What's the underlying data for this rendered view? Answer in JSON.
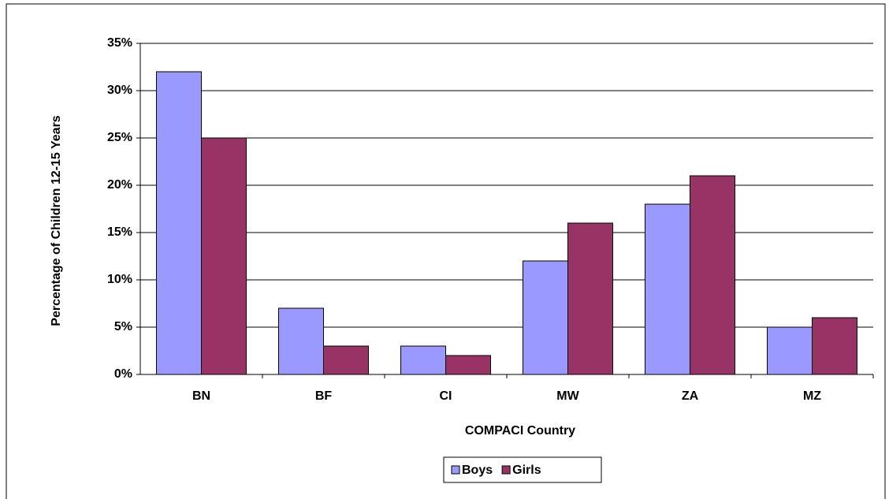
{
  "chart_data": {
    "type": "bar",
    "y_label": "Percentage of Children 12-15 Years",
    "x_label": "COMPACI Country",
    "categories": [
      "BN",
      "BF",
      "CI",
      "MW",
      "ZA",
      "MZ"
    ],
    "series": [
      {
        "name": "Boys",
        "color": "#9999ff",
        "values": [
          32,
          7,
          3,
          12,
          18,
          5
        ]
      },
      {
        "name": "Girls",
        "color": "#993366",
        "values": [
          25,
          3,
          2,
          16,
          21,
          6
        ]
      }
    ],
    "ylim": [
      0,
      35
    ],
    "yticks": [
      {
        "value": 0,
        "label": "0%"
      },
      {
        "value": 5,
        "label": "5%"
      },
      {
        "value": 10,
        "label": "10%"
      },
      {
        "value": 15,
        "label": "15%"
      },
      {
        "value": 20,
        "label": "20%"
      },
      {
        "value": 25,
        "label": "25%"
      },
      {
        "value": 30,
        "label": "30%"
      },
      {
        "value": 35,
        "label": "35%"
      }
    ],
    "grid": true,
    "legend": "bottom"
  }
}
